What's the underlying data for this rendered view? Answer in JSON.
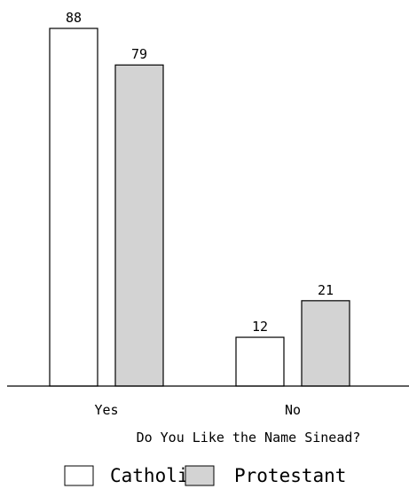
{
  "chart_data": {
    "type": "bar",
    "xlabel": "Do You Like the Name Sinead?",
    "ylabel": "",
    "categories": [
      "Yes",
      "No"
    ],
    "series": [
      {
        "name": "Catholic",
        "values": [
          88,
          79
        ],
        "color": "#ffffff"
      },
      {
        "name": "Protestant",
        "values": [
          12,
          21
        ],
        "color": "#d3d3d3"
      }
    ],
    "ylim": [
      0,
      88
    ],
    "legend_position": "bottom",
    "grid": false,
    "note": "values shown per category in order: first bar white, second bar grey"
  }
}
